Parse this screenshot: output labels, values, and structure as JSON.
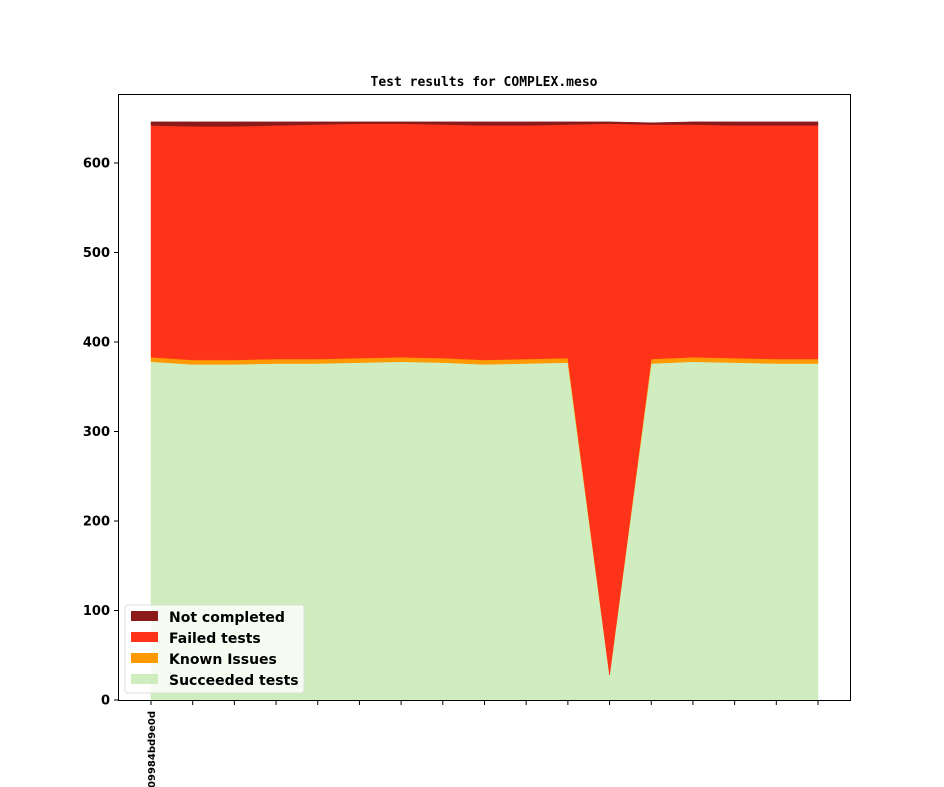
{
  "chart_data": {
    "type": "area",
    "stacked": true,
    "title": "Test results for COMPLEX.meso",
    "xlabel": "",
    "ylabel": "",
    "x_tick_labels": [
      "09984bd9e0d",
      "",
      "",
      "",
      "",
      "",
      "",
      "",
      "",
      "",
      "",
      "",
      "",
      "",
      "",
      "",
      ""
    ],
    "ylim": [
      0,
      676
    ],
    "yticks": [
      0,
      100,
      200,
      300,
      400,
      500,
      600
    ],
    "grid": false,
    "legend_position": "lower-left",
    "series": [
      {
        "name": "Succeeded tests",
        "color": "#cfedbf",
        "values": [
          378,
          375,
          375,
          376,
          376,
          377,
          378,
          377,
          375,
          376,
          377,
          28,
          376,
          378,
          377,
          376,
          376
        ]
      },
      {
        "name": "Known Issues",
        "color": "#ff9900",
        "values": [
          5,
          5,
          5,
          5,
          5,
          5,
          5,
          5,
          5,
          5,
          5,
          0,
          5,
          5,
          5,
          5,
          5
        ]
      },
      {
        "name": "Failed tests",
        "color": "#ff331a",
        "values": [
          259,
          261,
          261,
          261,
          262,
          262,
          261,
          261,
          262,
          261,
          261,
          616,
          262,
          260,
          260,
          261,
          261
        ]
      },
      {
        "name": "Not completed",
        "color": "#8b1a1a",
        "values": [
          4,
          5,
          5,
          4,
          3,
          2,
          2,
          3,
          4,
          4,
          3,
          2,
          2,
          3,
          4,
          4,
          4
        ]
      }
    ]
  }
}
